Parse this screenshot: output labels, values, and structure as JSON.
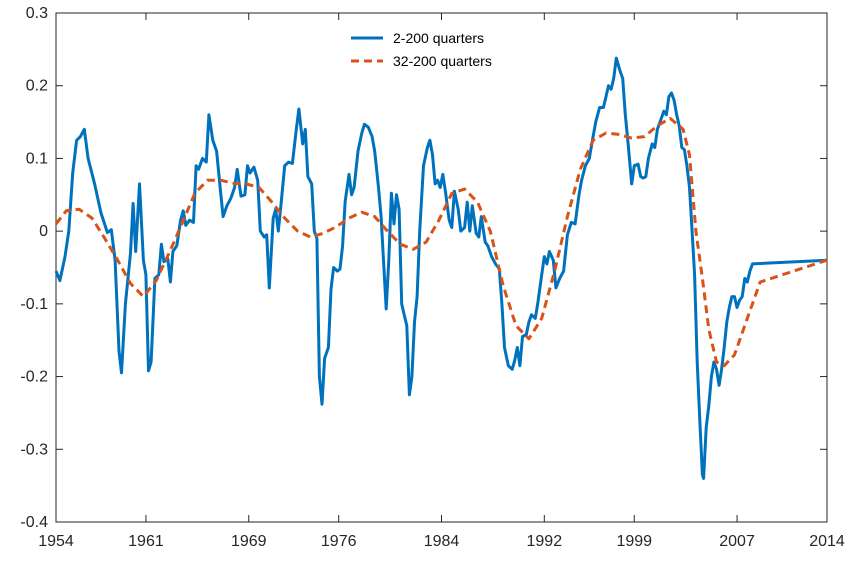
{
  "chart_data": {
    "type": "line",
    "title": "",
    "xlabel": "",
    "ylabel": "",
    "xlim": [
      1954,
      2014
    ],
    "ylim": [
      -0.4,
      0.3
    ],
    "x_ticks": [
      "1954",
      "1961",
      "1969",
      "1976",
      "1984",
      "1992",
      "1999",
      "2007",
      "2014"
    ],
    "y_ticks": [
      "0.3",
      "0.2",
      "0.1",
      "0",
      "-0.1",
      "-0.2",
      "-0.3",
      "-0.4"
    ],
    "grid": false,
    "legend_position": "top-center",
    "series": [
      {
        "name": "2-200 quarters",
        "color": "#0072BD",
        "style": "solid",
        "points": [
          [
            1954.0,
            -0.055
          ],
          [
            1954.3,
            -0.068
          ],
          [
            1954.7,
            -0.035
          ],
          [
            1955.0,
            0.0
          ],
          [
            1955.3,
            0.08
          ],
          [
            1955.6,
            0.125
          ],
          [
            1955.9,
            0.13
          ],
          [
            1956.2,
            0.14
          ],
          [
            1956.5,
            0.1
          ],
          [
            1957.0,
            0.065
          ],
          [
            1957.5,
            0.025
          ],
          [
            1958.0,
            -0.002
          ],
          [
            1958.3,
            0.002
          ],
          [
            1958.6,
            -0.04
          ],
          [
            1958.9,
            -0.165
          ],
          [
            1959.1,
            -0.195
          ],
          [
            1959.4,
            -0.1
          ],
          [
            1959.8,
            -0.03
          ],
          [
            1960.0,
            0.038
          ],
          [
            1960.2,
            -0.028
          ],
          [
            1960.5,
            0.065
          ],
          [
            1960.8,
            -0.04
          ],
          [
            1961.0,
            -0.06
          ],
          [
            1961.2,
            -0.192
          ],
          [
            1961.4,
            -0.18
          ],
          [
            1961.7,
            -0.065
          ],
          [
            1962.0,
            -0.06
          ],
          [
            1962.2,
            -0.018
          ],
          [
            1962.4,
            -0.042
          ],
          [
            1962.7,
            -0.038
          ],
          [
            1962.9,
            -0.07
          ],
          [
            1963.1,
            -0.028
          ],
          [
            1963.4,
            -0.02
          ],
          [
            1963.7,
            0.015
          ],
          [
            1963.9,
            0.028
          ],
          [
            1964.1,
            0.008
          ],
          [
            1964.4,
            0.015
          ],
          [
            1964.7,
            0.012
          ],
          [
            1964.9,
            0.09
          ],
          [
            1965.1,
            0.085
          ],
          [
            1965.4,
            0.1
          ],
          [
            1965.7,
            0.095
          ],
          [
            1965.9,
            0.16
          ],
          [
            1966.2,
            0.125
          ],
          [
            1966.5,
            0.11
          ],
          [
            1966.8,
            0.055
          ],
          [
            1967.0,
            0.02
          ],
          [
            1967.3,
            0.035
          ],
          [
            1967.6,
            0.045
          ],
          [
            1967.9,
            0.06
          ],
          [
            1968.1,
            0.085
          ],
          [
            1968.4,
            0.048
          ],
          [
            1968.7,
            0.05
          ],
          [
            1968.9,
            0.09
          ],
          [
            1969.1,
            0.08
          ],
          [
            1969.4,
            0.088
          ],
          [
            1969.7,
            0.07
          ],
          [
            1969.9,
            0.0
          ],
          [
            1970.2,
            -0.008
          ],
          [
            1970.4,
            -0.005
          ],
          [
            1970.6,
            -0.078
          ],
          [
            1970.9,
            0.018
          ],
          [
            1971.1,
            0.03
          ],
          [
            1971.3,
            0.0
          ],
          [
            1971.5,
            0.035
          ],
          [
            1971.8,
            0.09
          ],
          [
            1972.1,
            0.095
          ],
          [
            1972.4,
            0.093
          ],
          [
            1972.7,
            0.14
          ],
          [
            1972.9,
            0.168
          ],
          [
            1973.2,
            0.12
          ],
          [
            1973.4,
            0.14
          ],
          [
            1973.6,
            0.075
          ],
          [
            1973.9,
            0.065
          ],
          [
            1974.1,
            0.0
          ],
          [
            1974.3,
            -0.01
          ],
          [
            1974.5,
            -0.2
          ],
          [
            1974.7,
            -0.238
          ],
          [
            1974.9,
            -0.175
          ],
          [
            1975.2,
            -0.16
          ],
          [
            1975.4,
            -0.08
          ],
          [
            1975.6,
            -0.05
          ],
          [
            1975.9,
            -0.055
          ],
          [
            1976.1,
            -0.052
          ],
          [
            1976.3,
            -0.02
          ],
          [
            1976.5,
            0.04
          ],
          [
            1976.8,
            0.078
          ],
          [
            1977.0,
            0.05
          ],
          [
            1977.2,
            0.06
          ],
          [
            1977.5,
            0.11
          ],
          [
            1977.8,
            0.135
          ],
          [
            1978.0,
            0.147
          ],
          [
            1978.3,
            0.143
          ],
          [
            1978.6,
            0.13
          ],
          [
            1978.8,
            0.11
          ],
          [
            1979.1,
            0.06
          ],
          [
            1979.3,
            0.02
          ],
          [
            1979.5,
            -0.045
          ],
          [
            1979.7,
            -0.107
          ],
          [
            1979.9,
            -0.04
          ],
          [
            1980.1,
            0.052
          ],
          [
            1980.3,
            0.01
          ],
          [
            1980.5,
            0.05
          ],
          [
            1980.7,
            0.03
          ],
          [
            1980.9,
            -0.1
          ],
          [
            1981.1,
            -0.115
          ],
          [
            1981.3,
            -0.13
          ],
          [
            1981.5,
            -0.225
          ],
          [
            1981.7,
            -0.2
          ],
          [
            1981.9,
            -0.125
          ],
          [
            1982.1,
            -0.09
          ],
          [
            1982.3,
            0.0
          ],
          [
            1982.6,
            0.09
          ],
          [
            1982.9,
            0.115
          ],
          [
            1983.1,
            0.125
          ],
          [
            1983.3,
            0.105
          ],
          [
            1983.5,
            0.065
          ],
          [
            1983.7,
            0.07
          ],
          [
            1983.9,
            0.06
          ],
          [
            1984.1,
            0.078
          ],
          [
            1984.3,
            0.055
          ],
          [
            1984.6,
            0.015
          ],
          [
            1984.8,
            0.005
          ],
          [
            1985.0,
            0.055
          ],
          [
            1985.3,
            0.03
          ],
          [
            1985.5,
            0.0
          ],
          [
            1985.8,
            0.005
          ],
          [
            1986.0,
            0.04
          ],
          [
            1986.2,
            0.0
          ],
          [
            1986.4,
            0.035
          ],
          [
            1986.7,
            -0.003
          ],
          [
            1986.9,
            -0.008
          ],
          [
            1987.1,
            0.02
          ],
          [
            1987.4,
            -0.015
          ],
          [
            1987.6,
            -0.02
          ],
          [
            1987.9,
            -0.035
          ],
          [
            1988.2,
            -0.045
          ],
          [
            1988.5,
            -0.052
          ],
          [
            1988.7,
            -0.1
          ],
          [
            1988.9,
            -0.16
          ],
          [
            1989.2,
            -0.185
          ],
          [
            1989.5,
            -0.19
          ],
          [
            1989.7,
            -0.178
          ],
          [
            1989.9,
            -0.16
          ],
          [
            1990.1,
            -0.185
          ],
          [
            1990.3,
            -0.145
          ],
          [
            1990.6,
            -0.142
          ],
          [
            1990.8,
            -0.125
          ],
          [
            1991.0,
            -0.115
          ],
          [
            1991.3,
            -0.12
          ],
          [
            1991.5,
            -0.098
          ],
          [
            1991.8,
            -0.06
          ],
          [
            1992.0,
            -0.035
          ],
          [
            1992.2,
            -0.045
          ],
          [
            1992.4,
            -0.028
          ],
          [
            1992.7,
            -0.04
          ],
          [
            1992.9,
            -0.078
          ],
          [
            1993.2,
            -0.065
          ],
          [
            1993.5,
            -0.055
          ],
          [
            1993.8,
            -0.005
          ],
          [
            1994.1,
            0.012
          ],
          [
            1994.4,
            0.01
          ],
          [
            1994.7,
            0.05
          ],
          [
            1994.9,
            0.07
          ],
          [
            1995.2,
            0.09
          ],
          [
            1995.5,
            0.1
          ],
          [
            1995.8,
            0.13
          ],
          [
            1996.0,
            0.15
          ],
          [
            1996.3,
            0.17
          ],
          [
            1996.6,
            0.17
          ],
          [
            1996.8,
            0.185
          ],
          [
            1997.0,
            0.2
          ],
          [
            1997.2,
            0.195
          ],
          [
            1997.4,
            0.21
          ],
          [
            1997.6,
            0.238
          ],
          [
            1997.9,
            0.22
          ],
          [
            1998.1,
            0.21
          ],
          [
            1998.3,
            0.16
          ],
          [
            1998.5,
            0.125
          ],
          [
            1998.8,
            0.065
          ],
          [
            1999.0,
            0.09
          ],
          [
            1999.3,
            0.092
          ],
          [
            1999.5,
            0.075
          ],
          [
            1999.7,
            0.073
          ],
          [
            1999.9,
            0.075
          ],
          [
            2000.1,
            0.1
          ],
          [
            2000.4,
            0.12
          ],
          [
            2000.6,
            0.115
          ],
          [
            2000.8,
            0.14
          ],
          [
            2001.0,
            0.15
          ],
          [
            2001.3,
            0.165
          ],
          [
            2001.5,
            0.16
          ],
          [
            2001.7,
            0.185
          ],
          [
            2001.9,
            0.19
          ],
          [
            2002.1,
            0.18
          ],
          [
            2002.3,
            0.16
          ],
          [
            2002.5,
            0.145
          ],
          [
            2002.7,
            0.115
          ],
          [
            2002.9,
            0.112
          ],
          [
            2003.1,
            0.09
          ],
          [
            2003.3,
            0.06
          ],
          [
            2003.5,
            0.0
          ],
          [
            2003.7,
            -0.06
          ],
          [
            2003.9,
            -0.18
          ],
          [
            2004.1,
            -0.26
          ],
          [
            2004.3,
            -0.335
          ],
          [
            2004.4,
            -0.34
          ],
          [
            2004.6,
            -0.27
          ],
          [
            2004.8,
            -0.24
          ],
          [
            2005.0,
            -0.2
          ],
          [
            2005.2,
            -0.18
          ],
          [
            2005.4,
            -0.19
          ],
          [
            2005.6,
            -0.212
          ],
          [
            2005.8,
            -0.19
          ],
          [
            2006.0,
            -0.16
          ],
          [
            2006.2,
            -0.125
          ],
          [
            2006.4,
            -0.105
          ],
          [
            2006.6,
            -0.09
          ],
          [
            2006.8,
            -0.09
          ],
          [
            2007.0,
            -0.105
          ],
          [
            2007.2,
            -0.095
          ],
          [
            2007.4,
            -0.09
          ],
          [
            2007.6,
            -0.065
          ],
          [
            2007.8,
            -0.07
          ],
          [
            2008.0,
            -0.055
          ],
          [
            2008.2,
            -0.045
          ],
          [
            2014.0,
            -0.04
          ]
        ]
      },
      {
        "name": "32-200 quarters",
        "color": "#D95319",
        "style": "dashed",
        "points": [
          [
            1954.0,
            0.01
          ],
          [
            1954.8,
            0.028
          ],
          [
            1955.8,
            0.03
          ],
          [
            1956.8,
            0.018
          ],
          [
            1957.8,
            -0.01
          ],
          [
            1958.8,
            -0.04
          ],
          [
            1959.8,
            -0.072
          ],
          [
            1960.8,
            -0.09
          ],
          [
            1961.8,
            -0.068
          ],
          [
            1962.8,
            -0.03
          ],
          [
            1963.8,
            0.01
          ],
          [
            1964.8,
            0.052
          ],
          [
            1965.8,
            0.07
          ],
          [
            1966.8,
            0.07
          ],
          [
            1967.8,
            0.066
          ],
          [
            1968.8,
            0.065
          ],
          [
            1969.8,
            0.06
          ],
          [
            1970.8,
            0.04
          ],
          [
            1971.8,
            0.018
          ],
          [
            1972.8,
            0.0
          ],
          [
            1973.8,
            -0.008
          ],
          [
            1974.8,
            -0.003
          ],
          [
            1975.8,
            0.006
          ],
          [
            1976.8,
            0.018
          ],
          [
            1977.8,
            0.026
          ],
          [
            1978.8,
            0.02
          ],
          [
            1979.8,
            0.0
          ],
          [
            1980.8,
            -0.018
          ],
          [
            1981.8,
            -0.025
          ],
          [
            1982.8,
            -0.015
          ],
          [
            1983.8,
            0.015
          ],
          [
            1984.8,
            0.052
          ],
          [
            1985.8,
            0.058
          ],
          [
            1986.8,
            0.04
          ],
          [
            1987.8,
            0.0
          ],
          [
            1988.8,
            -0.075
          ],
          [
            1989.8,
            -0.13
          ],
          [
            1990.8,
            -0.148
          ],
          [
            1991.8,
            -0.12
          ],
          [
            1992.8,
            -0.055
          ],
          [
            1993.8,
            0.02
          ],
          [
            1994.8,
            0.085
          ],
          [
            1995.8,
            0.125
          ],
          [
            1996.8,
            0.135
          ],
          [
            1997.8,
            0.133
          ],
          [
            1998.8,
            0.128
          ],
          [
            1999.8,
            0.13
          ],
          [
            2000.8,
            0.145
          ],
          [
            2001.8,
            0.155
          ],
          [
            2002.8,
            0.14
          ],
          [
            2003.3,
            0.105
          ],
          [
            2003.8,
            0.0
          ],
          [
            2004.3,
            -0.065
          ],
          [
            2004.8,
            -0.135
          ],
          [
            2005.4,
            -0.18
          ],
          [
            2006.0,
            -0.185
          ],
          [
            2006.8,
            -0.17
          ],
          [
            2007.8,
            -0.12
          ],
          [
            2008.8,
            -0.07
          ],
          [
            2014.0,
            -0.04
          ]
        ]
      }
    ]
  }
}
